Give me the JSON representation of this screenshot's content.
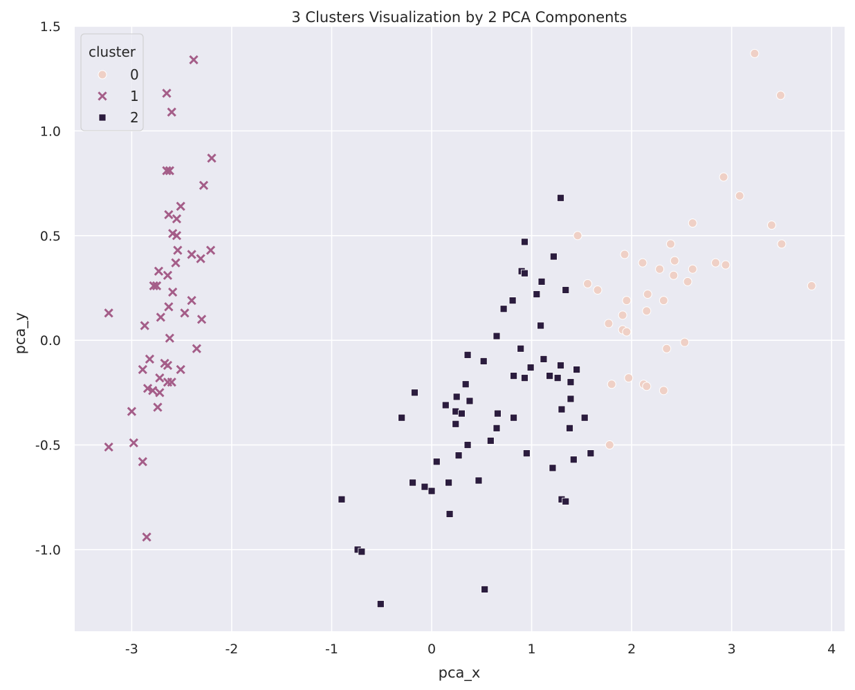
{
  "chart_data": {
    "type": "scatter",
    "title": "3 Clusters Visualization by 2 PCA Components",
    "xlabel": "pca_x",
    "ylabel": "pca_y",
    "xlim": [
      -3.57,
      4.13
    ],
    "ylim": [
      -1.39,
      1.5
    ],
    "xticks": [
      -3,
      -2,
      -1,
      0,
      1,
      2,
      3,
      4
    ],
    "xtick_labels": [
      "-3",
      "-2",
      "-1",
      "0",
      "1",
      "2",
      "3",
      "4"
    ],
    "yticks": [
      -1.0,
      -0.5,
      0.0,
      0.5,
      1.0,
      1.5
    ],
    "ytick_labels": [
      "-1.0",
      "-0.5",
      "0.0",
      "0.5",
      "1.0",
      "1.5"
    ],
    "grid": true,
    "background": "#eaeaf2",
    "legend": {
      "title": "cluster",
      "placement": "top-left",
      "entries": [
        {
          "label": "0",
          "marker": "circle",
          "color": "#efd0c6"
        },
        {
          "label": "1",
          "marker": "x",
          "color": "#a45d88"
        },
        {
          "label": "2",
          "marker": "square",
          "color": "#2b1c3e"
        }
      ]
    },
    "series": [
      {
        "name": "0",
        "marker": "circle",
        "color": "#efd0c6",
        "points": [
          [
            3.23,
            1.37
          ],
          [
            3.49,
            1.17
          ],
          [
            2.92,
            0.78
          ],
          [
            3.08,
            0.69
          ],
          [
            2.61,
            0.56
          ],
          [
            3.4,
            0.55
          ],
          [
            3.5,
            0.46
          ],
          [
            1.46,
            0.5
          ],
          [
            1.93,
            0.41
          ],
          [
            2.39,
            0.46
          ],
          [
            2.11,
            0.37
          ],
          [
            2.43,
            0.38
          ],
          [
            2.84,
            0.37
          ],
          [
            2.94,
            0.36
          ],
          [
            2.28,
            0.34
          ],
          [
            2.61,
            0.34
          ],
          [
            2.42,
            0.31
          ],
          [
            2.56,
            0.28
          ],
          [
            3.8,
            0.26
          ],
          [
            1.56,
            0.27
          ],
          [
            1.66,
            0.24
          ],
          [
            2.16,
            0.22
          ],
          [
            1.95,
            0.19
          ],
          [
            2.32,
            0.19
          ],
          [
            2.15,
            0.14
          ],
          [
            1.91,
            0.12
          ],
          [
            1.77,
            0.08
          ],
          [
            1.91,
            0.05
          ],
          [
            1.95,
            0.04
          ],
          [
            2.53,
            -0.01
          ],
          [
            2.35,
            -0.04
          ],
          [
            1.97,
            -0.18
          ],
          [
            1.8,
            -0.21
          ],
          [
            2.12,
            -0.21
          ],
          [
            2.15,
            -0.22
          ],
          [
            2.32,
            -0.24
          ],
          [
            1.78,
            -0.5
          ]
        ]
      },
      {
        "name": "1",
        "marker": "x",
        "color": "#a45d88",
        "points": [
          [
            -2.38,
            1.34
          ],
          [
            -2.65,
            1.18
          ],
          [
            -2.6,
            1.09
          ],
          [
            -2.2,
            0.87
          ],
          [
            -2.65,
            0.81
          ],
          [
            -2.62,
            0.81
          ],
          [
            -2.28,
            0.74
          ],
          [
            -2.51,
            0.64
          ],
          [
            -2.63,
            0.6
          ],
          [
            -2.55,
            0.58
          ],
          [
            -2.59,
            0.51
          ],
          [
            -2.55,
            0.5
          ],
          [
            -2.21,
            0.43
          ],
          [
            -2.54,
            0.43
          ],
          [
            -2.4,
            0.41
          ],
          [
            -2.31,
            0.39
          ],
          [
            -2.56,
            0.37
          ],
          [
            -2.73,
            0.33
          ],
          [
            -2.64,
            0.31
          ],
          [
            -2.78,
            0.26
          ],
          [
            -2.75,
            0.26
          ],
          [
            -2.59,
            0.23
          ],
          [
            -2.4,
            0.19
          ],
          [
            -2.63,
            0.16
          ],
          [
            -2.47,
            0.13
          ],
          [
            -3.23,
            0.13
          ],
          [
            -2.71,
            0.11
          ],
          [
            -2.3,
            0.1
          ],
          [
            -2.87,
            0.07
          ],
          [
            -2.62,
            0.01
          ],
          [
            -2.35,
            -0.04
          ],
          [
            -2.82,
            -0.09
          ],
          [
            -2.67,
            -0.11
          ],
          [
            -2.64,
            -0.12
          ],
          [
            -2.89,
            -0.14
          ],
          [
            -2.51,
            -0.14
          ],
          [
            -2.72,
            -0.18
          ],
          [
            -2.64,
            -0.2
          ],
          [
            -2.6,
            -0.2
          ],
          [
            -2.84,
            -0.23
          ],
          [
            -2.79,
            -0.24
          ],
          [
            -2.72,
            -0.25
          ],
          [
            -2.74,
            -0.32
          ],
          [
            -3.0,
            -0.34
          ],
          [
            -2.98,
            -0.49
          ],
          [
            -3.23,
            -0.51
          ],
          [
            -2.89,
            -0.58
          ],
          [
            -2.85,
            -0.94
          ]
        ]
      },
      {
        "name": "2",
        "marker": "square",
        "color": "#2b1c3e",
        "points": [
          [
            1.29,
            0.68
          ],
          [
            0.93,
            0.47
          ],
          [
            1.22,
            0.4
          ],
          [
            0.9,
            0.33
          ],
          [
            0.93,
            0.32
          ],
          [
            1.1,
            0.28
          ],
          [
            1.34,
            0.24
          ],
          [
            1.05,
            0.22
          ],
          [
            0.81,
            0.19
          ],
          [
            0.72,
            0.15
          ],
          [
            1.09,
            0.07
          ],
          [
            0.65,
            0.02
          ],
          [
            0.89,
            -0.04
          ],
          [
            0.36,
            -0.07
          ],
          [
            0.52,
            -0.1
          ],
          [
            1.12,
            -0.09
          ],
          [
            0.99,
            -0.13
          ],
          [
            1.29,
            -0.12
          ],
          [
            1.45,
            -0.14
          ],
          [
            0.82,
            -0.17
          ],
          [
            1.18,
            -0.17
          ],
          [
            1.26,
            -0.18
          ],
          [
            0.93,
            -0.18
          ],
          [
            1.39,
            -0.2
          ],
          [
            0.34,
            -0.21
          ],
          [
            -0.17,
            -0.25
          ],
          [
            0.25,
            -0.27
          ],
          [
            1.39,
            -0.28
          ],
          [
            0.38,
            -0.29
          ],
          [
            0.14,
            -0.31
          ],
          [
            0.24,
            -0.34
          ],
          [
            1.3,
            -0.33
          ],
          [
            0.3,
            -0.35
          ],
          [
            0.66,
            -0.35
          ],
          [
            -0.3,
            -0.37
          ],
          [
            0.82,
            -0.37
          ],
          [
            1.53,
            -0.37
          ],
          [
            0.24,
            -0.4
          ],
          [
            0.65,
            -0.42
          ],
          [
            1.38,
            -0.42
          ],
          [
            0.59,
            -0.48
          ],
          [
            0.36,
            -0.5
          ],
          [
            1.59,
            -0.54
          ],
          [
            0.27,
            -0.55
          ],
          [
            0.95,
            -0.54
          ],
          [
            0.05,
            -0.58
          ],
          [
            1.42,
            -0.57
          ],
          [
            1.21,
            -0.61
          ],
          [
            0.47,
            -0.67
          ],
          [
            -0.19,
            -0.68
          ],
          [
            0.17,
            -0.68
          ],
          [
            -0.07,
            -0.7
          ],
          [
            0.0,
            -0.72
          ],
          [
            -0.9,
            -0.76
          ],
          [
            1.3,
            -0.76
          ],
          [
            1.34,
            -0.77
          ],
          [
            0.18,
            -0.83
          ],
          [
            -0.74,
            -1.0
          ],
          [
            -0.7,
            -1.01
          ],
          [
            0.53,
            -1.19
          ],
          [
            -0.51,
            -1.26
          ]
        ]
      }
    ]
  }
}
